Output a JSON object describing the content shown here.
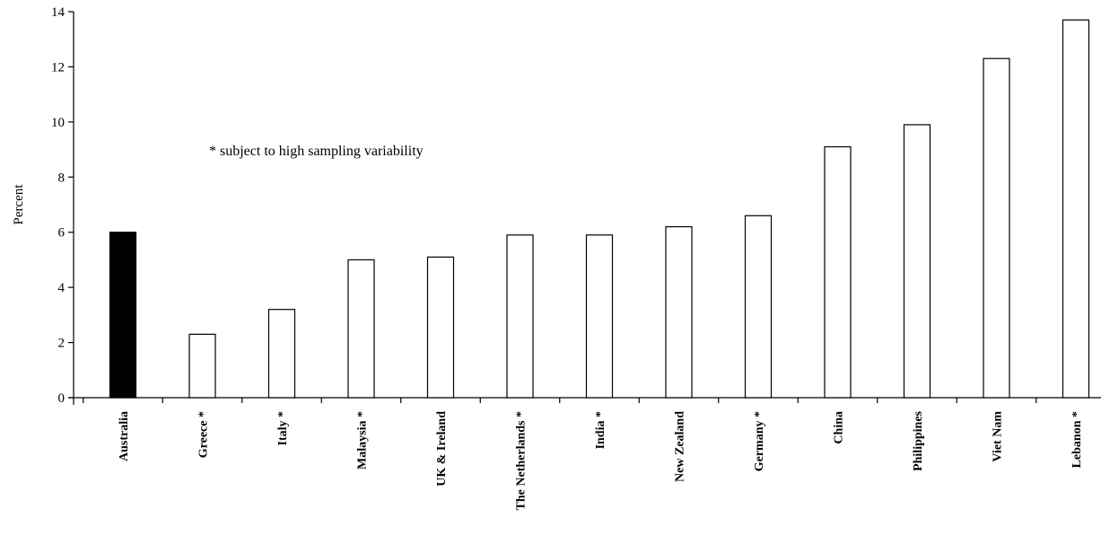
{
  "chart_data": {
    "type": "bar",
    "categories": [
      "Australia",
      "Greece *",
      "Italy *",
      "Malaysia *",
      "UK & Ireland",
      "The Netherlands *",
      "India *",
      "New Zealand",
      "Germany *",
      "China",
      "Philippines",
      "Viet Nam",
      "Lebanon *"
    ],
    "values": [
      6.0,
      2.3,
      3.2,
      5.0,
      5.1,
      5.9,
      5.9,
      6.2,
      6.6,
      9.1,
      9.9,
      12.3,
      13.7
    ],
    "highlight_index": 0,
    "colors": {
      "highlight": "#000000",
      "default": "#ffffff",
      "stroke": "#000000"
    },
    "ylabel": "Percent",
    "ylim": [
      0,
      14
    ],
    "yticks": [
      0,
      2,
      4,
      6,
      8,
      10,
      12,
      14
    ],
    "annotation": "* subject to high sampling variability",
    "grid": false,
    "legend": "none"
  }
}
